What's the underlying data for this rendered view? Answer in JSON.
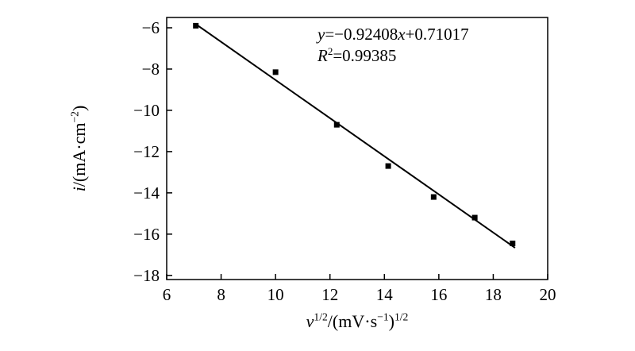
{
  "figure": {
    "background": "#ffffff",
    "axis_color": "#000000",
    "marker_color": "#000000",
    "line_color": "#000000"
  },
  "chart_data": {
    "type": "scatter",
    "title": "",
    "xlabel": "v^1/2/(mV·s^−1)^1/2",
    "ylabel": "i/(mA·cm^−2)",
    "xlim": [
      6,
      20
    ],
    "ylim": [
      -18.2,
      -5.5
    ],
    "x_ticks": [
      6,
      8,
      10,
      12,
      14,
      16,
      18,
      20
    ],
    "y_ticks": [
      -6,
      -8,
      -10,
      -12,
      -14,
      -16,
      -18
    ],
    "grid": false,
    "legend": null,
    "points": {
      "x": [
        7.07,
        10.0,
        12.25,
        14.14,
        15.81,
        17.32,
        18.71
      ],
      "y": [
        -5.9,
        -8.15,
        -10.7,
        -12.7,
        -14.2,
        -15.2,
        -16.45
      ]
    },
    "fit": {
      "slope": -0.92408,
      "intercept": 0.71017,
      "x_start": 7.07,
      "x_end": 18.8
    },
    "annotation": {
      "equation": "y=−0.92408x+0.71017",
      "r_squared": "R2=0.99385",
      "eq_y": "y",
      "eq_mid": "=−0.92408",
      "eq_x": "x",
      "eq_tail": "+0.71017",
      "r_sym": "R",
      "r_sup": "2",
      "r_val": "=0.99385"
    },
    "xlabel_parts": {
      "var": "v",
      "sup1": "1/2",
      "mid": "/(mV·s",
      "sup2": "−1",
      "close": ")",
      "sup3": "1/2"
    },
    "ylabel_parts": {
      "var": "i",
      "mid": "/(mA·cm",
      "sup": "−2",
      "close": ")"
    }
  }
}
